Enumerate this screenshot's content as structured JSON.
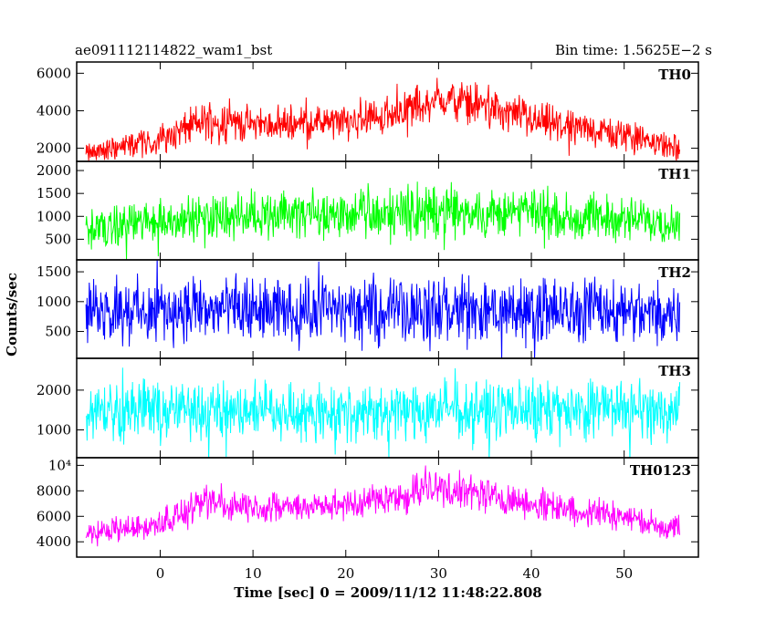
{
  "header": {
    "left_title": "ae091112114822_wam1_bst",
    "right_title": "Bin time: 1.5625E−2 s"
  },
  "chart_data": {
    "type": "line",
    "ylabel": "Counts/sec",
    "xlabel": "Time [sec] 0 = 2009/11/12 11:48:22.808",
    "xlim": [
      -9,
      58
    ],
    "x_data_range": [
      -8,
      56
    ],
    "x_ticks": [
      0,
      10,
      20,
      30,
      40,
      50
    ],
    "x_tick_labels": [
      "0",
      "10",
      "20",
      "30",
      "40",
      "50"
    ],
    "panels": [
      {
        "name": "TH0",
        "color": "#ff0000",
        "ylim": [
          1300,
          6600
        ],
        "y_ticks": [
          2000,
          4000,
          6000
        ],
        "y_tick_labels": [
          "2000",
          "4000",
          "6000"
        ],
        "envelope": {
          "x": [
            -8,
            0,
            5,
            10,
            20,
            25,
            30,
            35,
            40,
            50,
            56
          ],
          "mean": [
            1700,
            2500,
            3500,
            3300,
            3400,
            3900,
            4700,
            4300,
            3500,
            2700,
            2000
          ],
          "spread": [
            700,
            1000,
            1300,
            1100,
            1100,
            1200,
            1400,
            1300,
            1200,
            1000,
            800
          ]
        }
      },
      {
        "name": "TH1",
        "color": "#00ff00",
        "ylim": [
          50,
          2200
        ],
        "y_ticks": [
          500,
          1000,
          1500,
          2000
        ],
        "y_tick_labels": [
          "500",
          "1000",
          "1500",
          "2000"
        ],
        "envelope": {
          "x": [
            -8,
            0,
            10,
            20,
            30,
            40,
            50,
            56
          ],
          "mean": [
            700,
            900,
            1050,
            1050,
            1100,
            1050,
            950,
            850
          ],
          "spread": [
            500,
            550,
            600,
            600,
            650,
            600,
            550,
            500
          ]
        }
      },
      {
        "name": "TH2",
        "color": "#0000ff",
        "ylim": [
          50,
          1700
        ],
        "y_ticks": [
          500,
          1000,
          1500
        ],
        "y_tick_labels": [
          "500",
          "1000",
          "1500"
        ],
        "envelope": {
          "x": [
            -8,
            0,
            10,
            20,
            30,
            40,
            50,
            56
          ],
          "mean": [
            850,
            850,
            850,
            850,
            850,
            850,
            850,
            850
          ],
          "spread": [
            650,
            650,
            650,
            650,
            650,
            650,
            650,
            650
          ]
        }
      },
      {
        "name": "TH3",
        "color": "#00ffff",
        "ylim": [
          300,
          2800
        ],
        "y_ticks": [
          1000,
          2000
        ],
        "y_tick_labels": [
          "1000",
          "2000"
        ],
        "envelope": {
          "x": [
            -8,
            0,
            10,
            20,
            30,
            40,
            50,
            56
          ],
          "mean": [
            1500,
            1500,
            1500,
            1500,
            1500,
            1500,
            1500,
            1500
          ],
          "spread": [
            900,
            900,
            900,
            900,
            900,
            900,
            900,
            900
          ]
        }
      },
      {
        "name": "TH0123",
        "color": "#ff00ff",
        "ylim": [
          2800,
          10600
        ],
        "y_ticks": [
          4000,
          6000,
          8000,
          10000
        ],
        "y_tick_labels": [
          "4000",
          "6000",
          "8000",
          "10⁴"
        ],
        "envelope": {
          "x": [
            -8,
            0,
            5,
            10,
            20,
            25,
            30,
            35,
            40,
            50,
            56
          ],
          "mean": [
            4500,
            5500,
            7000,
            6800,
            6900,
            7500,
            8200,
            7800,
            7000,
            6000,
            5000
          ],
          "spread": [
            1000,
            1300,
            1600,
            1400,
            1400,
            1500,
            1700,
            1600,
            1500,
            1300,
            1100
          ]
        }
      }
    ]
  }
}
